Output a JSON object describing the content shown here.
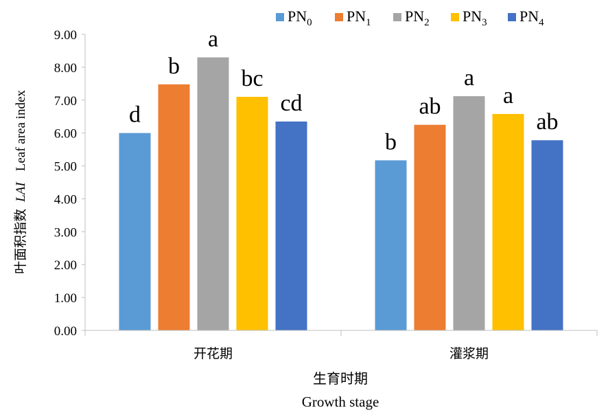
{
  "chart_data": {
    "type": "bar",
    "categories": [
      "开花期",
      "灌浆期"
    ],
    "series": [
      {
        "name": "PN",
        "sub": "0",
        "color": "#5b9bd5",
        "values": [
          6.0,
          5.17
        ],
        "labels": [
          "d",
          "b"
        ]
      },
      {
        "name": "PN",
        "sub": "1",
        "color": "#ed7d31",
        "values": [
          7.48,
          6.25
        ],
        "labels": [
          "b",
          "ab"
        ]
      },
      {
        "name": "PN",
        "sub": "2",
        "color": "#a5a5a5",
        "values": [
          8.3,
          7.12
        ],
        "labels": [
          "a",
          "a"
        ]
      },
      {
        "name": "PN",
        "sub": "3",
        "color": "#ffc000",
        "values": [
          7.1,
          6.58
        ],
        "labels": [
          "bc",
          "a"
        ]
      },
      {
        "name": "PN",
        "sub": "4",
        "color": "#4472c4",
        "values": [
          6.35,
          5.78
        ],
        "labels": [
          "cd",
          "ab"
        ]
      }
    ],
    "yticks": [
      "0.00",
      "1.00",
      "2.00",
      "3.00",
      "4.00",
      "5.00",
      "6.00",
      "7.00",
      "8.00",
      "9.00"
    ],
    "ylim": [
      0,
      9
    ],
    "xlabel_cn": "生育时期",
    "xlabel_en": "Growth stage",
    "ylabel_cn": "叶面积指数",
    "ylabel_italic": "LAI",
    "ylabel_en": "Leaf area index",
    "legend_position": "top",
    "grid": false
  }
}
